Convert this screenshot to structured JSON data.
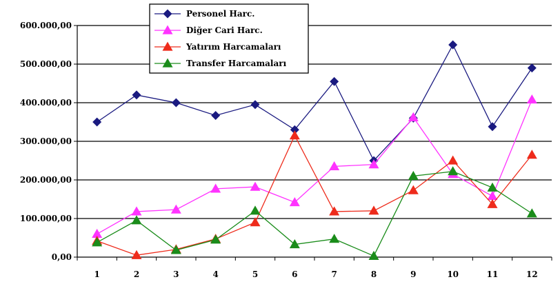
{
  "chart_data": {
    "type": "line",
    "title": "",
    "xlabel": "",
    "ylabel": "",
    "categories": [
      "1",
      "2",
      "3",
      "4",
      "5",
      "6",
      "7",
      "8",
      "9",
      "10",
      "11",
      "12"
    ],
    "ylim": [
      0,
      600000
    ],
    "yticks": [
      0,
      100000,
      200000,
      300000,
      400000,
      500000,
      600000
    ],
    "ytick_labels": [
      "0,00",
      "100.000,00",
      "200.000,00",
      "300.000,00",
      "400.000,00",
      "500.000,00",
      "600.000,00"
    ],
    "grid": "horizontal",
    "legend_position": "top-center",
    "series": [
      {
        "name": "Personel Harc.",
        "color": "#1a1a80",
        "marker": "diamond",
        "values": [
          350000,
          420000,
          400000,
          367000,
          395000,
          330000,
          455000,
          250000,
          360000,
          550000,
          338000,
          490000
        ]
      },
      {
        "name": "Diğer Cari Harc.",
        "color": "#ff33ff",
        "marker": "triangle",
        "values": [
          60000,
          118000,
          123000,
          177000,
          182000,
          142000,
          235000,
          240000,
          362000,
          215000,
          158000,
          408000
        ]
      },
      {
        "name": "Yatırım Harcamaları",
        "color": "#ee2b1b",
        "marker": "triangle",
        "values": [
          42000,
          5000,
          20000,
          47000,
          90000,
          315000,
          118000,
          120000,
          173000,
          250000,
          137000,
          265000
        ]
      },
      {
        "name": "Transfer Harcamaları",
        "color": "#1a8c1a",
        "marker": "triangle",
        "values": [
          38000,
          95000,
          18000,
          45000,
          120000,
          33000,
          47000,
          3000,
          210000,
          222000,
          180000,
          113000
        ]
      }
    ]
  }
}
